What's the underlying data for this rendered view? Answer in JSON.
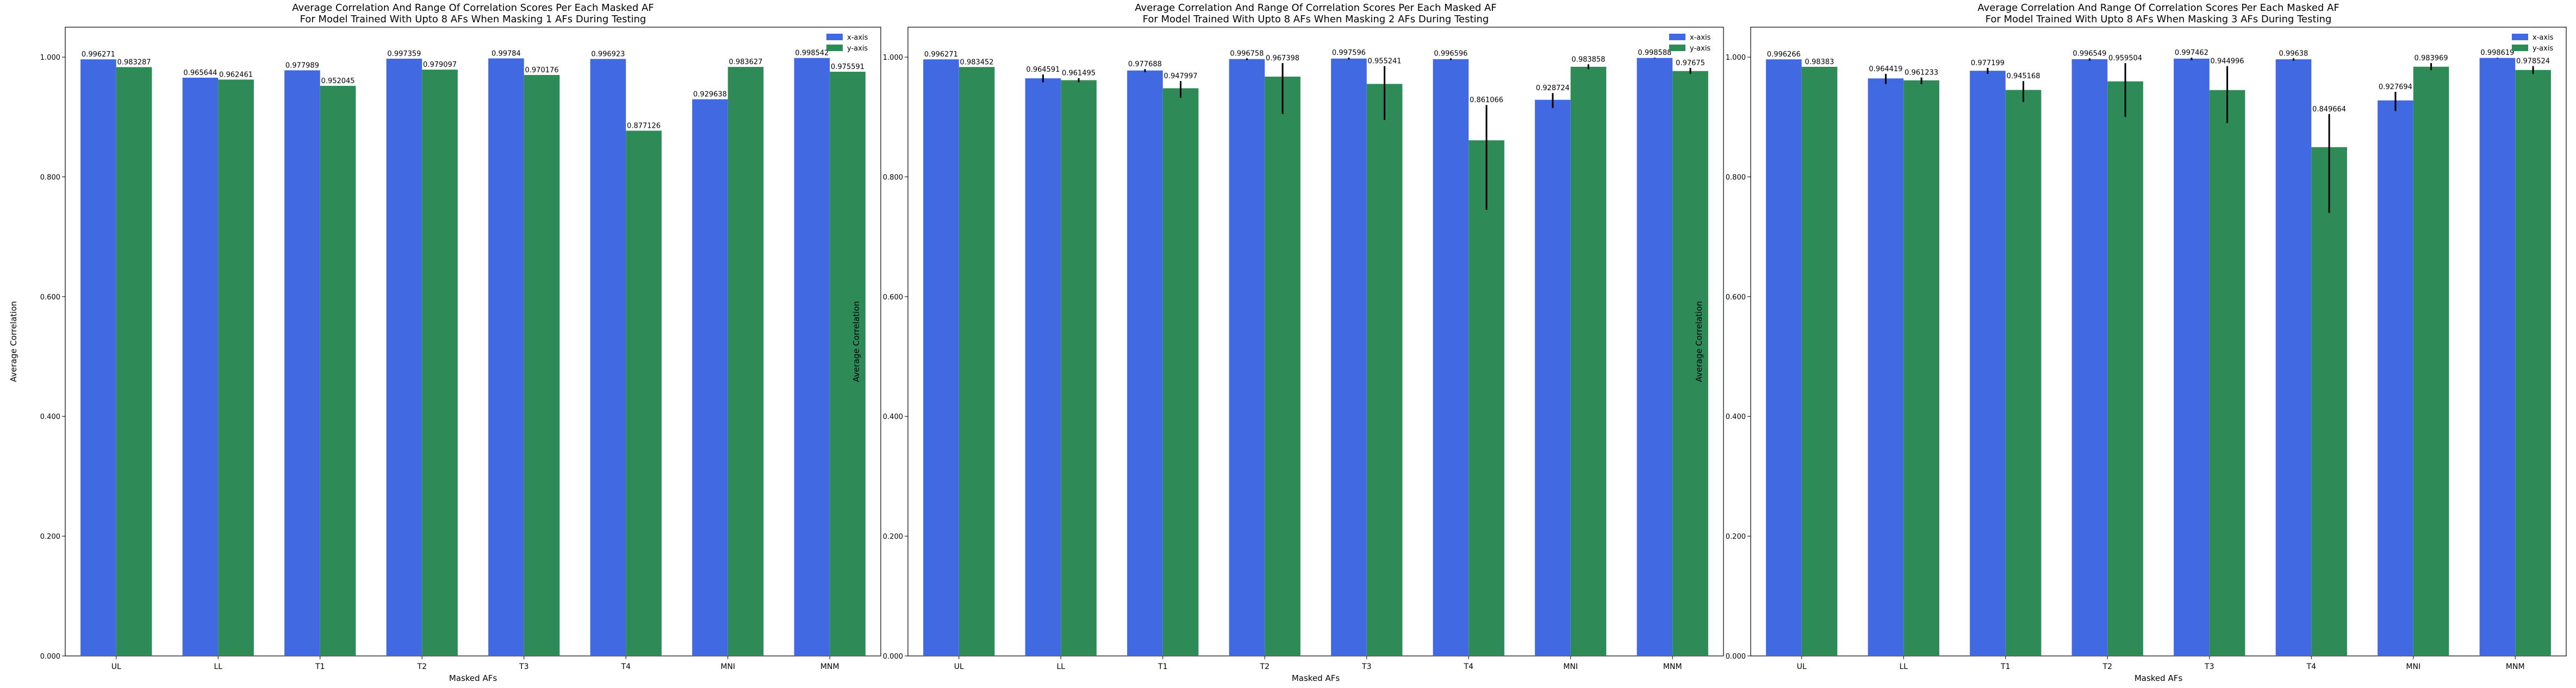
{
  "colors": {
    "x_axis": "#4169e1",
    "y_axis": "#2e8b57",
    "error_bar": "#000000",
    "axes": "#000000",
    "background": "#ffffff"
  },
  "chart_data": [
    {
      "type": "bar",
      "title": "Average Correlation And Range Of Correlation Scores Per Each Masked AF",
      "subtitle": "For Model Trained With Upto 8 AFs When Masking 1 AFs During Testing",
      "xlabel": "Masked AFs",
      "ylabel": "Average Correlation",
      "ylim": [
        0,
        1.05
      ],
      "yticks": [
        0,
        0.2,
        0.4,
        0.6,
        0.8,
        1.0
      ],
      "ytick_labels": [
        "0.000",
        "0.200",
        "0.400",
        "0.600",
        "0.800",
        "1.000"
      ],
      "categories": [
        "UL",
        "LL",
        "T1",
        "T2",
        "T3",
        "T4",
        "MNI",
        "MNM"
      ],
      "legend": "top-right",
      "series": [
        {
          "name": "x-axis",
          "color": "#4169e1",
          "values": [
            0.996271,
            0.965644,
            0.977989,
            0.997359,
            0.99784,
            0.996923,
            0.929638,
            0.998542
          ],
          "labels": [
            "0.996271",
            "0.965644",
            "0.977989",
            "0.997359",
            "0.99784",
            "0.996923",
            "0.929638",
            "0.998542"
          ],
          "err_low": [
            0.996271,
            0.965644,
            0.977989,
            0.997359,
            0.99784,
            0.996923,
            0.929638,
            0.998542
          ],
          "err_high": [
            0.996271,
            0.965644,
            0.977989,
            0.997359,
            0.99784,
            0.996923,
            0.929638,
            0.998542
          ]
        },
        {
          "name": "y-axis",
          "color": "#2e8b57",
          "values": [
            0.983287,
            0.962461,
            0.952045,
            0.979097,
            0.970176,
            0.877126,
            0.983627,
            0.975591
          ],
          "labels": [
            "0.983287",
            "0.962461",
            "0.952045",
            "0.979097",
            "0.970176",
            "0.877126",
            "0.983627",
            "0.975591"
          ],
          "err_low": [
            0.983287,
            0.962461,
            0.952045,
            0.979097,
            0.970176,
            0.877126,
            0.983627,
            0.975591
          ],
          "err_high": [
            0.983287,
            0.962461,
            0.952045,
            0.979097,
            0.970176,
            0.877126,
            0.983627,
            0.975591
          ]
        }
      ]
    },
    {
      "type": "bar",
      "title": "Average Correlation And Range Of Correlation Scores Per Each Masked AF",
      "subtitle": "For Model Trained With Upto 8 AFs When Masking 2 AFs During Testing",
      "xlabel": "Masked AFs",
      "ylabel": "Average Correlation",
      "ylim": [
        0,
        1.05
      ],
      "yticks": [
        0,
        0.2,
        0.4,
        0.6,
        0.8,
        1.0
      ],
      "ytick_labels": [
        "0.000",
        "0.200",
        "0.400",
        "0.600",
        "0.800",
        "1.000"
      ],
      "categories": [
        "UL",
        "LL",
        "T1",
        "T2",
        "T3",
        "T4",
        "MNI",
        "MNM"
      ],
      "legend": "top-right",
      "series": [
        {
          "name": "x-axis",
          "color": "#4169e1",
          "values": [
            0.996271,
            0.964591,
            0.977688,
            0.996758,
            0.997596,
            0.996596,
            0.928724,
            0.998588
          ],
          "labels": [
            "0.996271",
            "0.964591",
            "0.977688",
            "0.996758",
            "0.997596",
            "0.996596",
            "0.928724",
            "0.998588"
          ],
          "err_low": [
            0.996271,
            0.958,
            0.975,
            0.995,
            0.996,
            0.995,
            0.915,
            0.998
          ],
          "err_high": [
            0.996271,
            0.971,
            0.98,
            0.998,
            0.999,
            0.998,
            0.94,
            0.999
          ]
        },
        {
          "name": "y-axis",
          "color": "#2e8b57",
          "values": [
            0.983452,
            0.961495,
            0.947997,
            0.967398,
            0.955241,
            0.861066,
            0.983858,
            0.97675
          ],
          "labels": [
            "0.983452",
            "0.961495",
            "0.947997",
            "0.967398",
            "0.955241",
            "0.861066",
            "0.983858",
            "0.97675"
          ],
          "err_low": [
            0.983452,
            0.958,
            0.932,
            0.905,
            0.895,
            0.745,
            0.98,
            0.972
          ],
          "err_high": [
            0.983452,
            0.965,
            0.96,
            0.99,
            0.985,
            0.92,
            0.988,
            0.982
          ]
        }
      ]
    },
    {
      "type": "bar",
      "title": "Average Correlation And Range Of Correlation Scores Per Each Masked AF",
      "subtitle": "For Model Trained With Upto 8 AFs When Masking 3 AFs During Testing",
      "xlabel": "Masked AFs",
      "ylabel": "Average Correlation",
      "ylim": [
        0,
        1.05
      ],
      "yticks": [
        0,
        0.2,
        0.4,
        0.6,
        0.8,
        1.0
      ],
      "ytick_labels": [
        "0.000",
        "0.200",
        "0.400",
        "0.600",
        "0.800",
        "1.000"
      ],
      "categories": [
        "UL",
        "LL",
        "T1",
        "T2",
        "T3",
        "T4",
        "MNI",
        "MNM"
      ],
      "legend": "top-right",
      "series": [
        {
          "name": "x-axis",
          "color": "#4169e1",
          "values": [
            0.996266,
            0.964419,
            0.977199,
            0.996549,
            0.997462,
            0.99638,
            0.927694,
            0.998619
          ],
          "labels": [
            "0.996266",
            "0.964419",
            "0.977199",
            "0.996549",
            "0.997462",
            "0.99638",
            "0.927694",
            "0.998619"
          ],
          "err_low": [
            0.996266,
            0.955,
            0.972,
            0.994,
            0.995,
            0.994,
            0.91,
            0.998
          ],
          "err_high": [
            0.996266,
            0.972,
            0.982,
            0.998,
            0.999,
            0.998,
            0.942,
            0.999
          ]
        },
        {
          "name": "y-axis",
          "color": "#2e8b57",
          "values": [
            0.98383,
            0.961233,
            0.945168,
            0.959504,
            0.944996,
            0.849664,
            0.983969,
            0.978524
          ],
          "labels": [
            "0.98383",
            "0.961233",
            "0.945168",
            "0.959504",
            "0.944996",
            "0.849664",
            "0.983969",
            "0.978524"
          ],
          "err_low": [
            0.98383,
            0.955,
            0.925,
            0.9,
            0.89,
            0.74,
            0.978,
            0.972
          ],
          "err_high": [
            0.98383,
            0.966,
            0.96,
            0.99,
            0.985,
            0.905,
            0.99,
            0.985
          ]
        }
      ]
    }
  ]
}
